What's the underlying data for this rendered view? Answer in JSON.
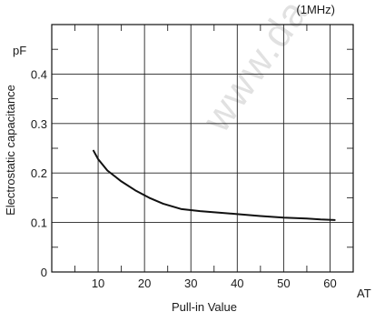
{
  "chart_data": {
    "type": "line",
    "title": "",
    "annotation": "(1MHz)",
    "xlabel": "Pull-in Value",
    "x_unit": "AT",
    "ylabel": "Electrostatic capacitance",
    "y_unit": "pF",
    "xlim": [
      0,
      65
    ],
    "ylim": [
      0,
      0.5
    ],
    "x_ticks": [
      10,
      20,
      30,
      40,
      50,
      60
    ],
    "x_tick_labels": [
      "10",
      "20",
      "30",
      "40",
      "50",
      "60"
    ],
    "x_grid_major": [
      10,
      20,
      30,
      40,
      50,
      60
    ],
    "x_minor_ticks": [
      5,
      15,
      25,
      35,
      45,
      55
    ],
    "y_ticks": [
      0,
      0.1,
      0.2,
      0.3,
      0.4
    ],
    "y_tick_labels": [
      "0",
      "0.1",
      "0.2",
      "0.3",
      "0.4"
    ],
    "y_grid_major": [
      0.1,
      0.2,
      0.3,
      0.4
    ],
    "y_grid_minor": [
      0.05,
      0.15,
      0.25,
      0.35,
      0.45
    ],
    "grid": true,
    "legend": "none",
    "series": [
      {
        "x": [
          9,
          10,
          12,
          15,
          18,
          21,
          24,
          28,
          32,
          36,
          40,
          45,
          50,
          55,
          58,
          61
        ],
        "y": [
          0.245,
          0.228,
          0.205,
          0.183,
          0.165,
          0.15,
          0.138,
          0.127,
          0.123,
          0.12,
          0.117,
          0.113,
          0.11,
          0.108,
          0.106,
          0.105
        ],
        "color": "#111111"
      }
    ],
    "watermark_text": "www.da"
  }
}
